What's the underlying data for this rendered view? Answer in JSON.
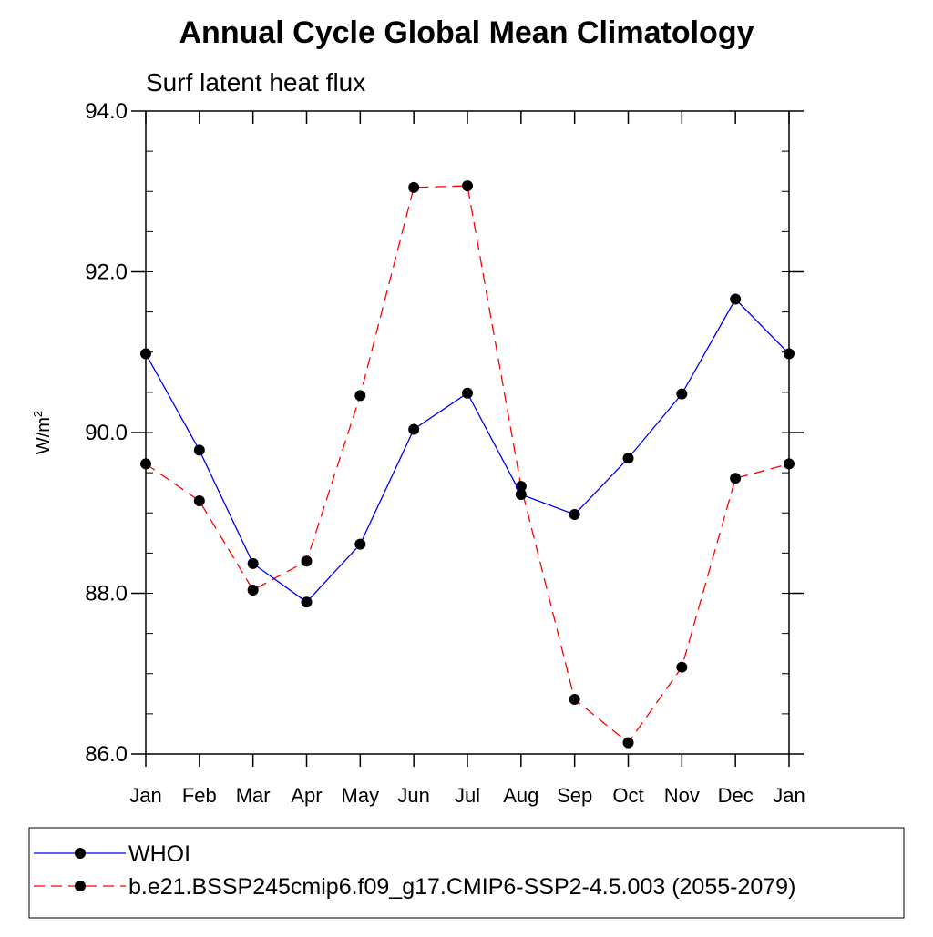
{
  "chart_data": {
    "type": "line",
    "title": "Annual Cycle Global Mean Climatology",
    "subtitle": "Surf latent heat flux",
    "ylabel": "W/m",
    "ylabel_sup": "2",
    "xlabel": "",
    "categories": [
      "Jan",
      "Feb",
      "Mar",
      "Apr",
      "May",
      "Jun",
      "Jul",
      "Aug",
      "Sep",
      "Oct",
      "Nov",
      "Dec",
      "Jan"
    ],
    "ylim": [
      86.0,
      94.0
    ],
    "yticks": [
      "86.0",
      "88.0",
      "90.0",
      "92.0",
      "94.0"
    ],
    "grid": false,
    "legend_position": "bottom",
    "series": [
      {
        "name": "WHOI",
        "color": "#0000ff",
        "style": "solid",
        "marker": "filled-circle",
        "values": [
          90.98,
          89.78,
          88.37,
          87.89,
          88.61,
          90.04,
          90.49,
          89.23,
          88.98,
          89.68,
          90.48,
          91.66,
          90.98
        ]
      },
      {
        "name": "b.e21.BSSP245cmip6.f09_g17.CMIP6-SSP2-4.5.003 (2055-2079)",
        "color": "#ff0000",
        "style": "dashed",
        "marker": "filled-circle",
        "values": [
          89.61,
          89.15,
          88.04,
          88.4,
          90.46,
          93.05,
          93.07,
          89.33,
          86.68,
          86.14,
          87.08,
          89.43,
          89.61
        ]
      }
    ]
  }
}
